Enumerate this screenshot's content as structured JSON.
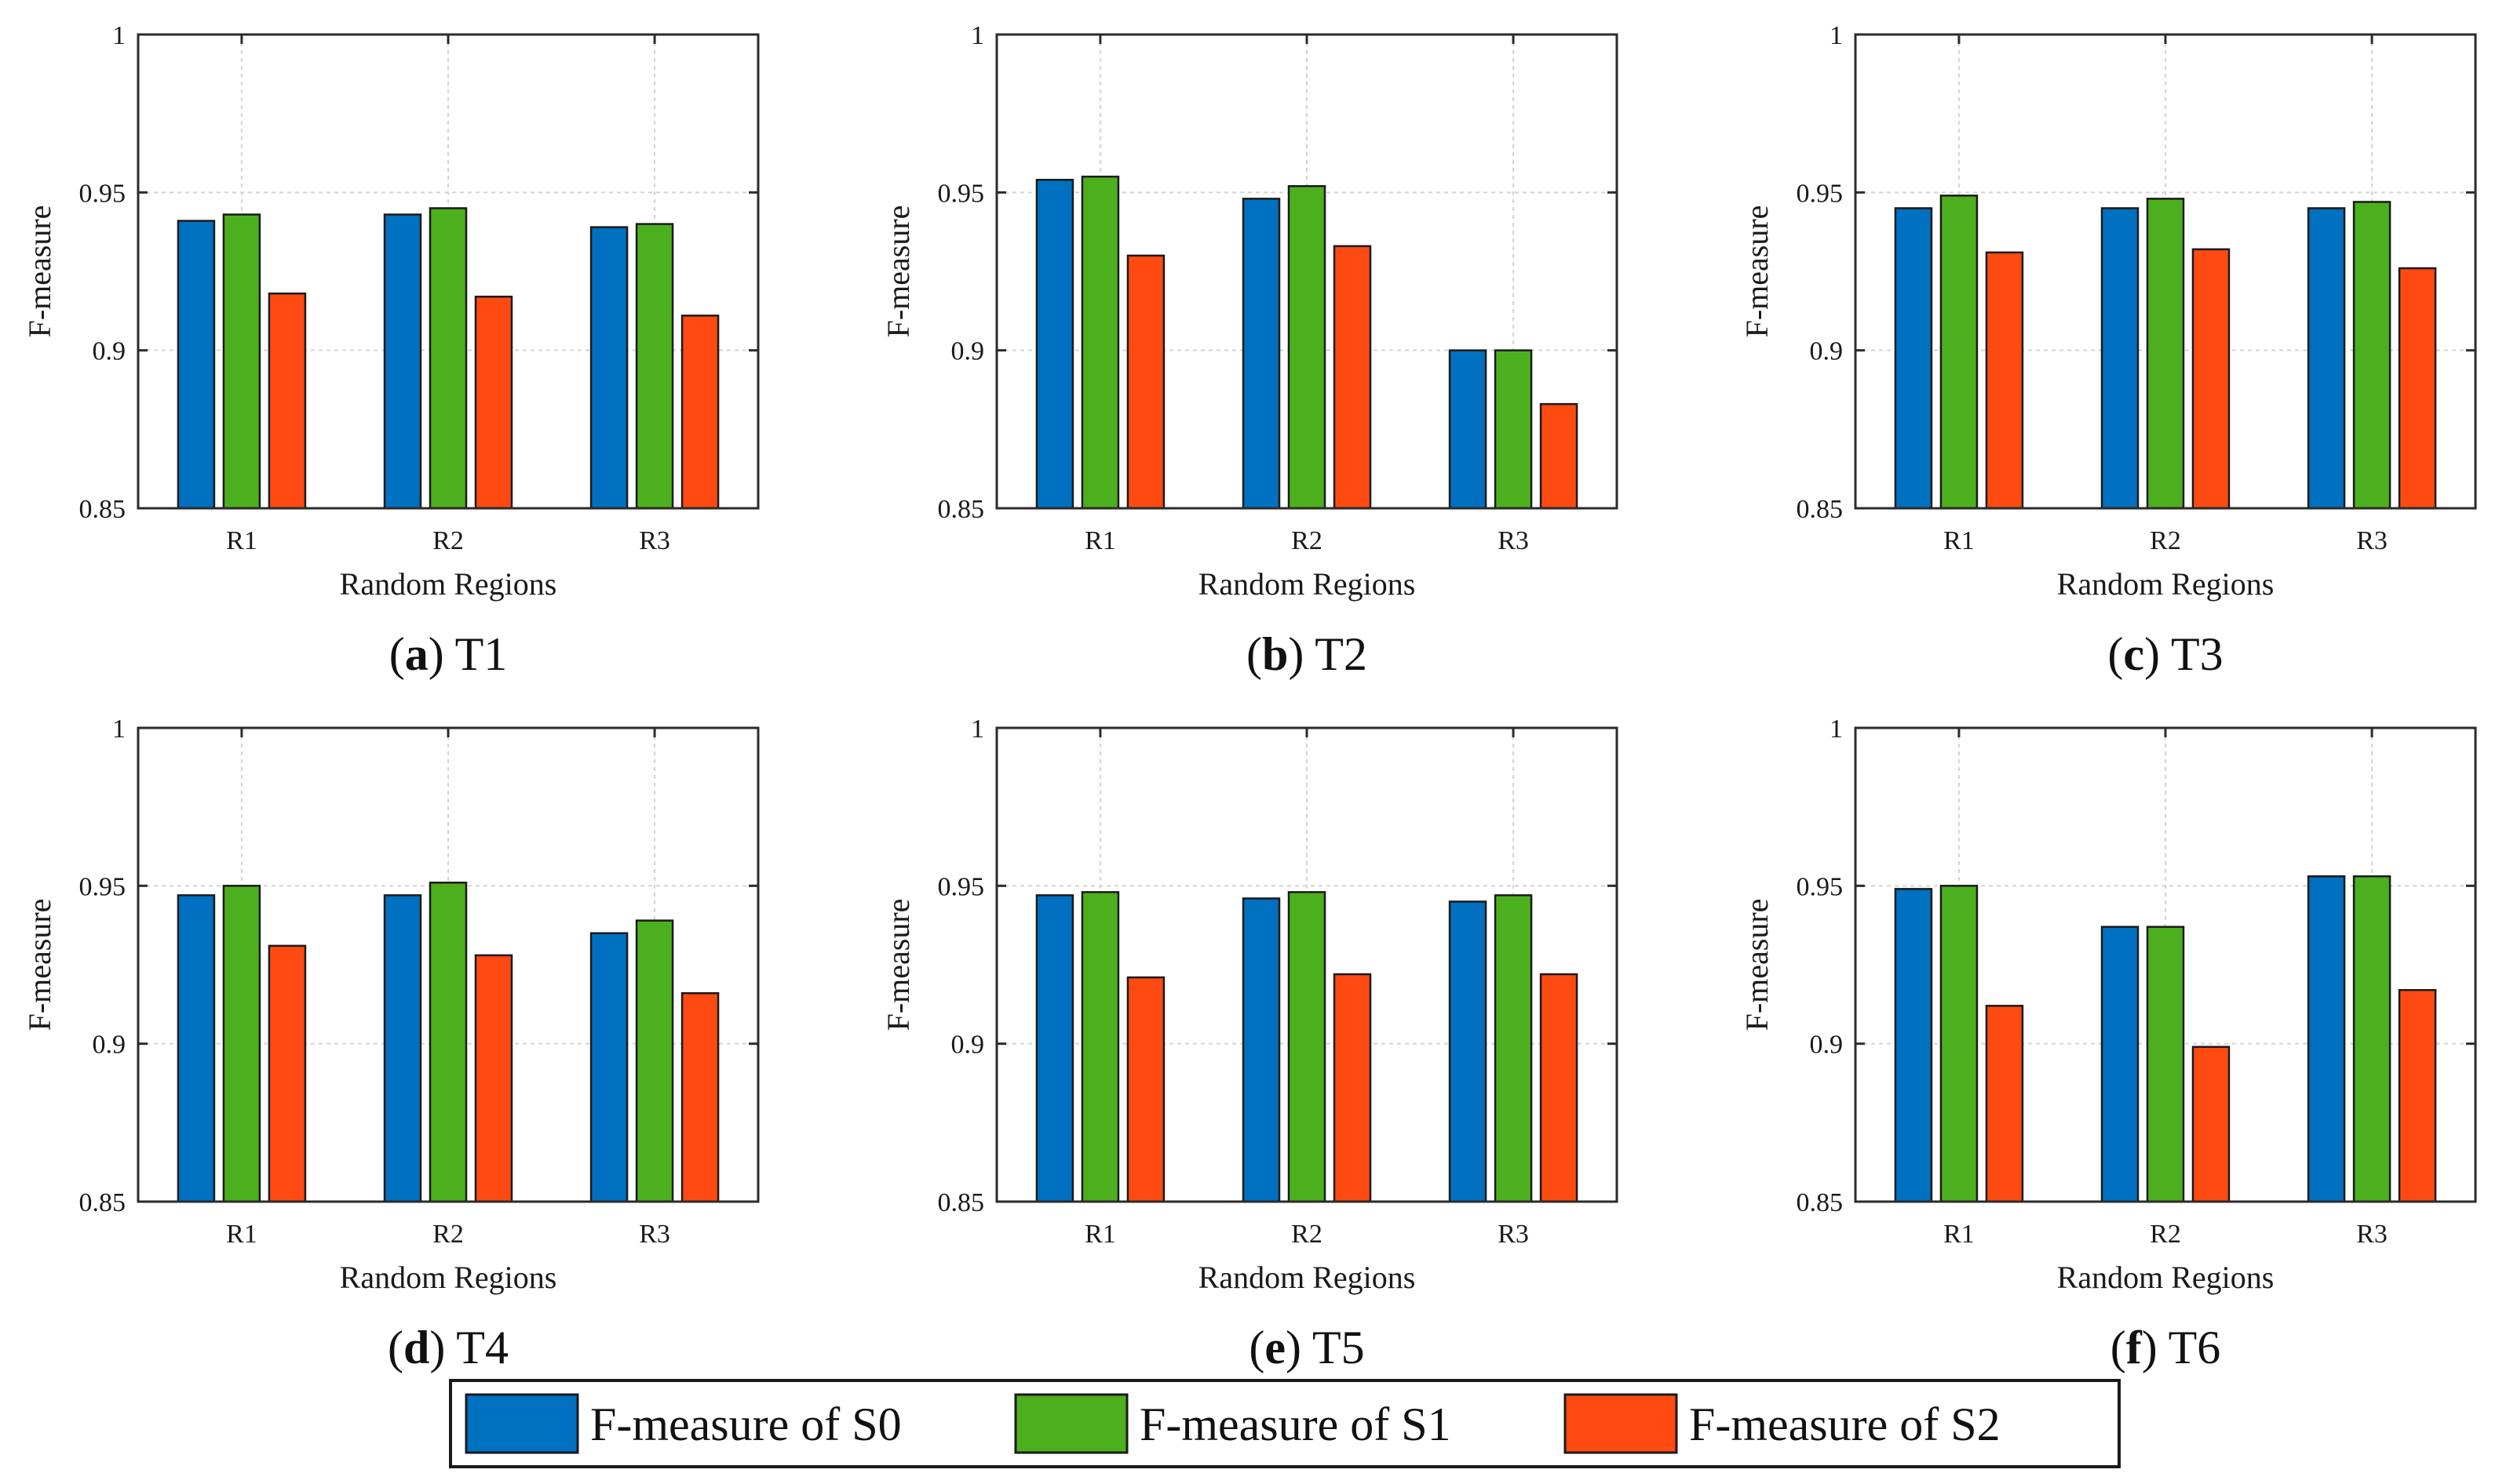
{
  "chart_data": [
    {
      "type": "bar",
      "panel": "a",
      "title": "T1",
      "categories": [
        "R1",
        "R2",
        "R3"
      ],
      "series": [
        {
          "name": "F-measure of S0",
          "values": [
            0.941,
            0.943,
            0.939
          ]
        },
        {
          "name": "F-measure of S1",
          "values": [
            0.943,
            0.945,
            0.94
          ]
        },
        {
          "name": "F-measure of S2",
          "values": [
            0.918,
            0.917,
            0.911
          ]
        }
      ],
      "xlabel": "Random Regions",
      "ylabel": "F-measure",
      "ylim": [
        0.85,
        1
      ],
      "yticks": [
        "0.85",
        "0.9",
        "0.95",
        "1"
      ],
      "grid": true
    },
    {
      "type": "bar",
      "panel": "b",
      "title": "T2",
      "categories": [
        "R1",
        "R2",
        "R3"
      ],
      "series": [
        {
          "name": "F-measure of S0",
          "values": [
            0.954,
            0.948,
            0.9
          ]
        },
        {
          "name": "F-measure of S1",
          "values": [
            0.955,
            0.952,
            0.9
          ]
        },
        {
          "name": "F-measure of S2",
          "values": [
            0.93,
            0.933,
            0.883
          ]
        }
      ],
      "xlabel": "Random Regions",
      "ylabel": "F-measure",
      "ylim": [
        0.85,
        1
      ],
      "yticks": [
        "0.85",
        "0.9",
        "0.95",
        "1"
      ],
      "grid": true
    },
    {
      "type": "bar",
      "panel": "c",
      "title": "T3",
      "categories": [
        "R1",
        "R2",
        "R3"
      ],
      "series": [
        {
          "name": "F-measure of S0",
          "values": [
            0.945,
            0.945,
            0.945
          ]
        },
        {
          "name": "F-measure of S1",
          "values": [
            0.949,
            0.948,
            0.947
          ]
        },
        {
          "name": "F-measure of S2",
          "values": [
            0.931,
            0.932,
            0.926
          ]
        }
      ],
      "xlabel": "Random Regions",
      "ylabel": "F-measure",
      "ylim": [
        0.85,
        1
      ],
      "yticks": [
        "0.85",
        "0.9",
        "0.95",
        "1"
      ],
      "grid": true
    },
    {
      "type": "bar",
      "panel": "d",
      "title": "T4",
      "categories": [
        "R1",
        "R2",
        "R3"
      ],
      "series": [
        {
          "name": "F-measure of S0",
          "values": [
            0.947,
            0.947,
            0.935
          ]
        },
        {
          "name": "F-measure of S1",
          "values": [
            0.95,
            0.951,
            0.939
          ]
        },
        {
          "name": "F-measure of S2",
          "values": [
            0.931,
            0.928,
            0.916
          ]
        }
      ],
      "xlabel": "Random Regions",
      "ylabel": "F-measure",
      "ylim": [
        0.85,
        1
      ],
      "yticks": [
        "0.85",
        "0.9",
        "0.95",
        "1"
      ],
      "grid": true
    },
    {
      "type": "bar",
      "panel": "e",
      "title": "T5",
      "categories": [
        "R1",
        "R2",
        "R3"
      ],
      "series": [
        {
          "name": "F-measure of S0",
          "values": [
            0.947,
            0.946,
            0.945
          ]
        },
        {
          "name": "F-measure of S1",
          "values": [
            0.948,
            0.948,
            0.947
          ]
        },
        {
          "name": "F-measure of S2",
          "values": [
            0.921,
            0.922,
            0.922
          ]
        }
      ],
      "xlabel": "Random Regions",
      "ylabel": "F-measure",
      "ylim": [
        0.85,
        1
      ],
      "yticks": [
        "0.85",
        "0.9",
        "0.95",
        "1"
      ],
      "grid": true
    },
    {
      "type": "bar",
      "panel": "f",
      "title": "T6",
      "categories": [
        "R1",
        "R2",
        "R3"
      ],
      "series": [
        {
          "name": "F-measure of S0",
          "values": [
            0.949,
            0.937,
            0.953
          ]
        },
        {
          "name": "F-measure of S1",
          "values": [
            0.95,
            0.937,
            0.953
          ]
        },
        {
          "name": "F-measure of S2",
          "values": [
            0.912,
            0.899,
            0.917
          ]
        }
      ],
      "xlabel": "Random Regions",
      "ylabel": "F-measure",
      "ylim": [
        0.85,
        1
      ],
      "yticks": [
        "0.85",
        "0.9",
        "0.95",
        "1"
      ],
      "grid": true
    }
  ],
  "legend": {
    "placement": "bottom-center",
    "items": [
      {
        "label": "F-measure of S0",
        "color": "#0070c0"
      },
      {
        "label": "F-measure of S1",
        "color": "#4caf1e"
      },
      {
        "label": "F-measure of S2",
        "color": "#ff4a12"
      }
    ]
  },
  "series_colors": [
    "#0070c0",
    "#4caf1e",
    "#ff4a12"
  ]
}
